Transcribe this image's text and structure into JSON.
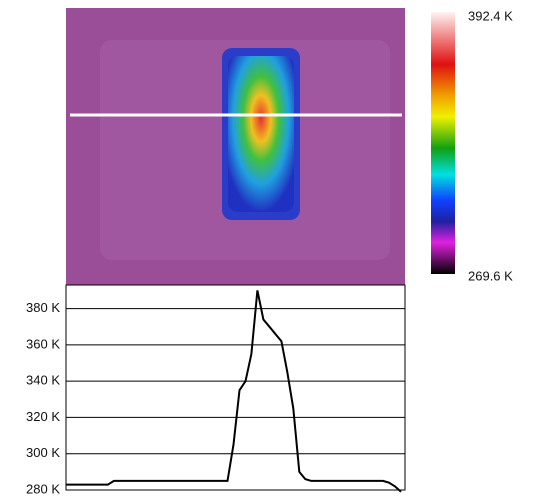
{
  "chart_data": {
    "type": "line",
    "colorbar": {
      "max_label": "392.4 K",
      "min_label": "269.6 K"
    },
    "values": [
      283,
      283,
      283,
      283,
      283,
      283,
      283,
      283,
      285,
      285,
      285,
      285,
      285,
      285,
      285,
      285,
      285,
      285,
      285,
      285,
      285,
      285,
      285,
      285,
      285,
      285,
      285,
      285,
      305,
      335,
      340,
      355,
      390,
      374,
      370,
      366,
      362,
      345,
      325,
      290,
      286,
      285,
      285,
      285,
      285,
      285,
      285,
      285,
      285,
      285,
      285,
      285,
      285,
      285,
      284,
      282,
      279
    ],
    "color": "#000000",
    "ylim": [
      280,
      393
    ],
    "yticks": [
      {
        "value": 280,
        "label": "280 K"
      },
      {
        "value": 300,
        "label": "300 K"
      },
      {
        "value": 320,
        "label": "320 K"
      },
      {
        "value": 340,
        "label": "340 K"
      },
      {
        "value": 360,
        "label": "360 K"
      },
      {
        "value": 380,
        "label": "380 K"
      }
    ],
    "grid": true
  }
}
